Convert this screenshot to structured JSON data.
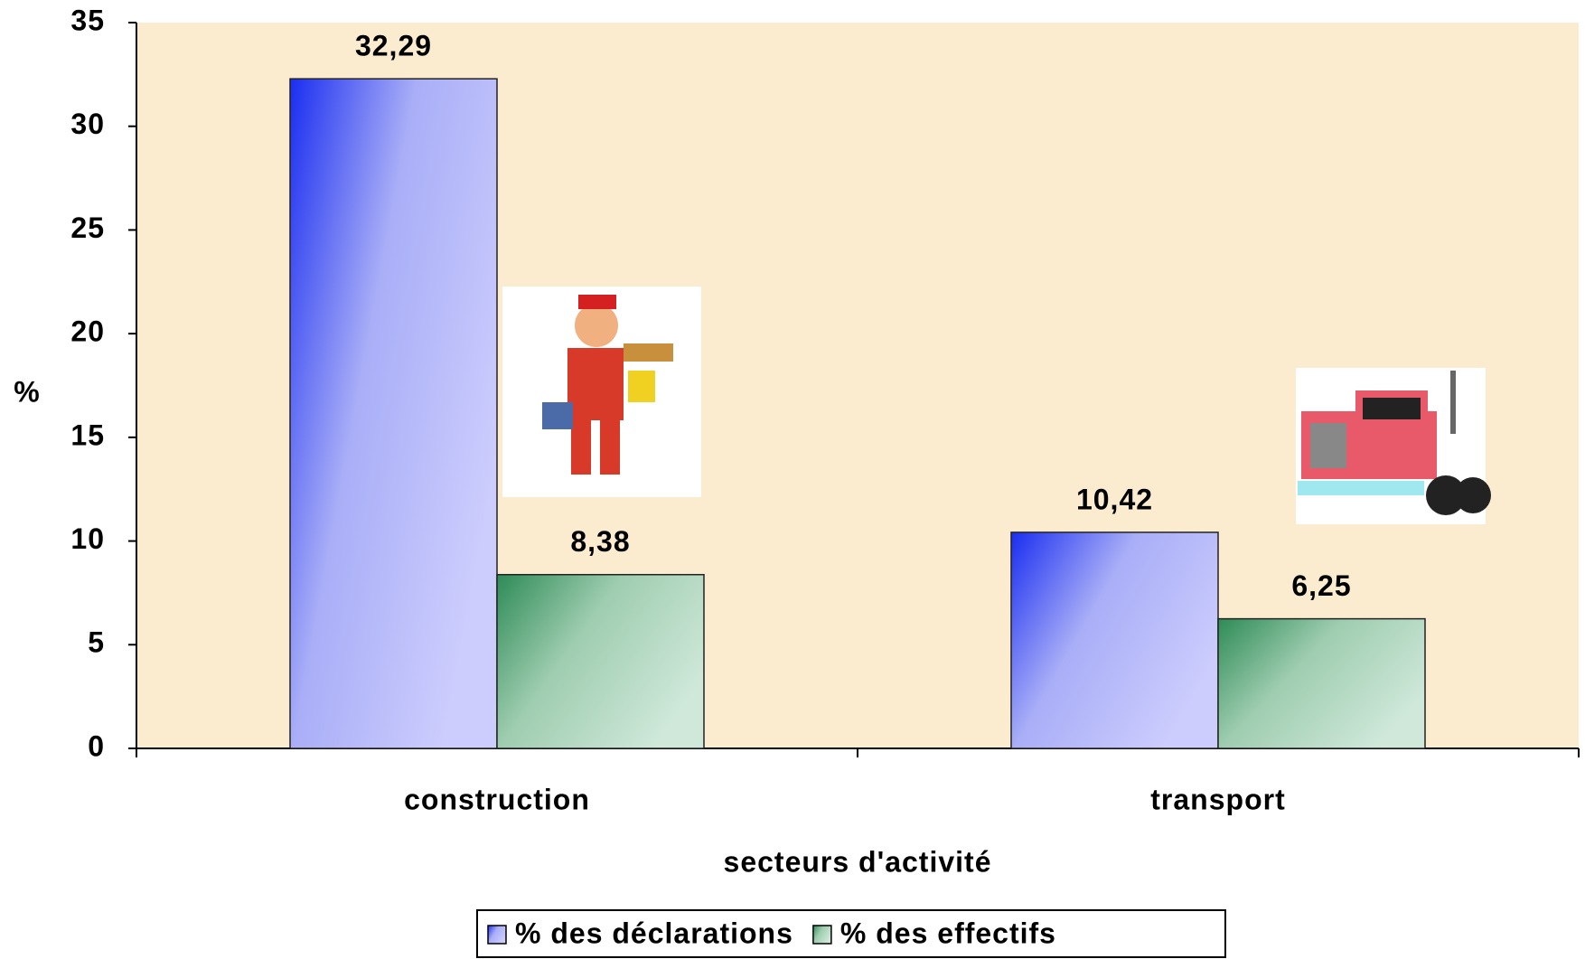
{
  "chart_data": {
    "type": "bar",
    "categories": [
      "construction",
      "transport"
    ],
    "series": [
      {
        "name": "% des déclarations",
        "color": "#1a2ef0",
        "values": [
          32.29,
          10.42
        ],
        "value_labels": [
          "32,29",
          "10,42"
        ]
      },
      {
        "name": "% des effectifs",
        "color": "#2e8b57",
        "values": [
          8.38,
          6.25
        ],
        "value_labels": [
          "8,38",
          "6,25"
        ]
      }
    ],
    "ylim": [
      0,
      35
    ],
    "yticks": [
      0,
      5,
      10,
      15,
      20,
      25,
      30,
      35
    ],
    "y_label": "%",
    "x_label": "secteurs d'activité",
    "legend": "bottom"
  }
}
